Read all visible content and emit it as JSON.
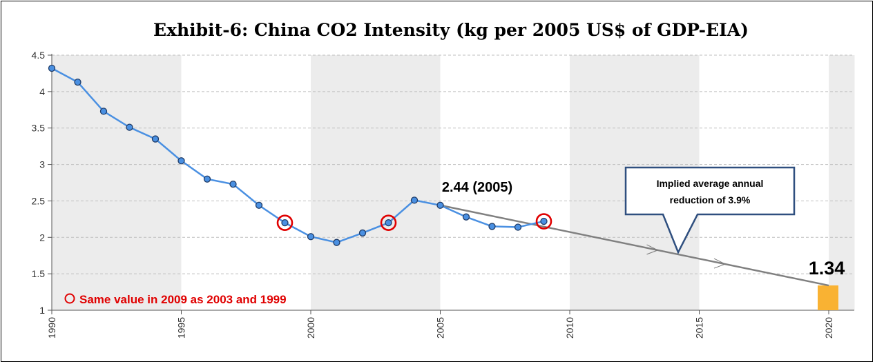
{
  "chart_data": {
    "type": "line",
    "title": "Exhibit-6: China CO2 Intensity (kg per 2005 US$ of GDP-EIA)",
    "xlabel": "",
    "ylabel": "",
    "xlim": [
      1990,
      2021
    ],
    "ylim": [
      1,
      4.5
    ],
    "x_ticks": [
      "1990",
      "1995",
      "2000",
      "2005",
      "2010",
      "2015",
      "2020"
    ],
    "y_ticks": [
      "1",
      "1.5",
      "2",
      "2.5",
      "3",
      "3.5",
      "4",
      "4.5"
    ],
    "grid": "horizontal dashed, alternating shaded 5-year bands",
    "series": [
      {
        "color": "#4a90e2",
        "x": [
          1990,
          1991,
          1992,
          1993,
          1994,
          1995,
          1996,
          1997,
          1998,
          1999,
          2000,
          2001,
          2002,
          2003,
          2004,
          2005,
          2006,
          2007,
          2008,
          2009
        ],
        "y": [
          4.32,
          4.13,
          3.73,
          3.51,
          3.35,
          3.05,
          2.8,
          2.73,
          2.44,
          2.2,
          2.01,
          1.93,
          2.06,
          2.2,
          2.51,
          2.44,
          2.28,
          2.15,
          2.14,
          2.22
        ]
      }
    ],
    "trend_line": {
      "x": [
        2005,
        2020
      ],
      "y": [
        2.44,
        1.34
      ],
      "color": "#808080"
    },
    "target_bar": {
      "x": 2020,
      "value": 1.34,
      "color": "#f9b233"
    },
    "highlighted_years": [
      1999,
      2003,
      2009
    ],
    "annotations": {
      "point_2005": "2.44 (2005)",
      "target_value": "1.34",
      "legend_note": "Same value in 2009 as 2003 and 1999",
      "callout_line1": "Implied average annual",
      "callout_line2": "reduction of 3.9%"
    },
    "colors": {
      "highlight_ring": "#e00000",
      "callout_border": "#2f4f7f",
      "band_shade": "#ececec"
    }
  }
}
